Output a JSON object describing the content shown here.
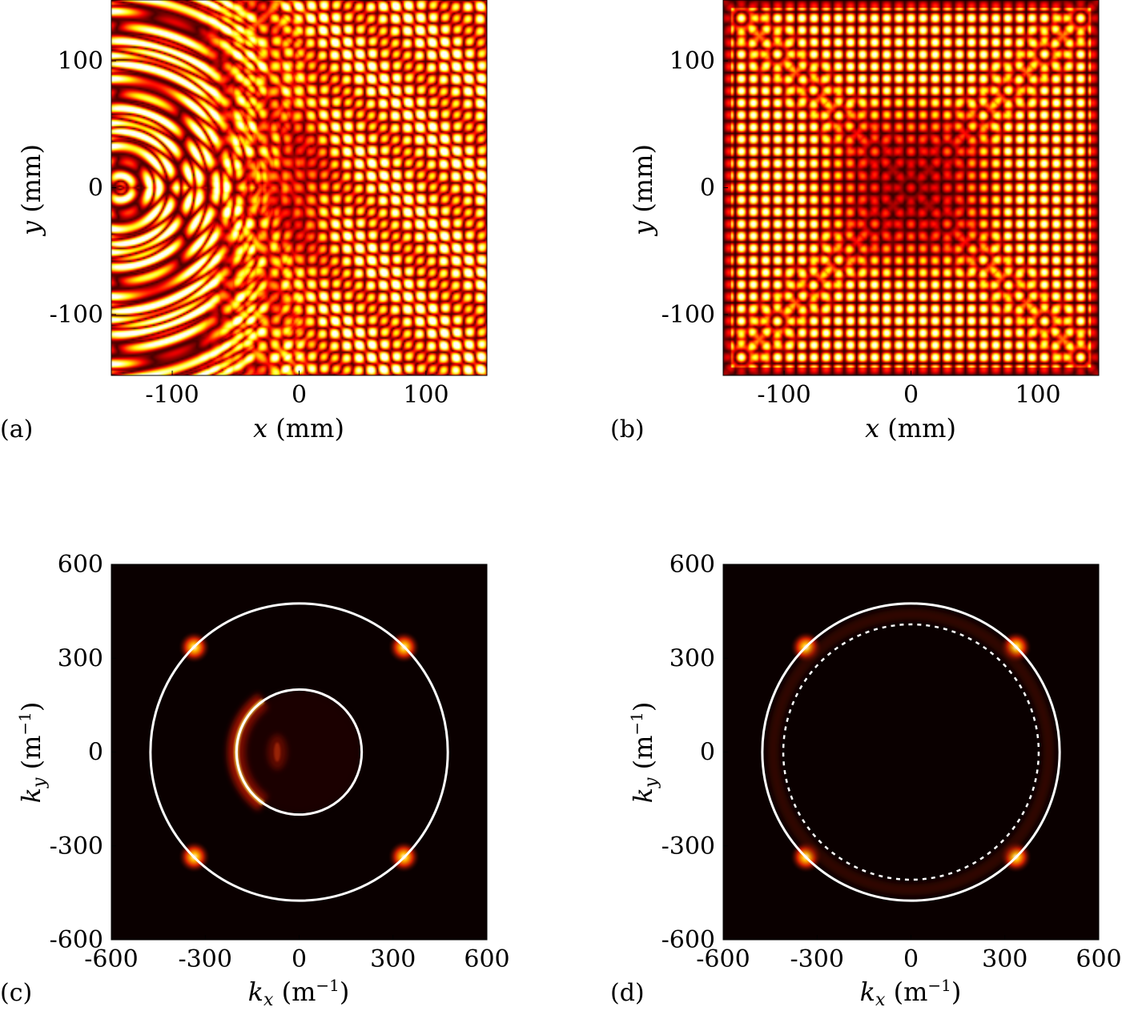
{
  "chart_data": [
    {
      "type": "heatmap",
      "panel_label": "(a)",
      "field": "real-space",
      "xlabel": "x (mm)",
      "ylabel": "y (mm)",
      "xlim": [
        -148,
        148
      ],
      "ylim": [
        -148,
        148
      ],
      "xticks": [
        -100,
        0,
        100
      ],
      "yticks": [
        -100,
        0,
        100
      ],
      "xtick_labels": [
        "-100",
        "0",
        "100"
      ],
      "ytick_labels": [
        "-100",
        "0",
        "100"
      ],
      "colormap": "hot"
    },
    {
      "type": "heatmap",
      "panel_label": "(b)",
      "field": "real-space",
      "xlabel": "x (mm)",
      "ylabel": "y (mm)",
      "xlim": [
        -148,
        148
      ],
      "ylim": [
        -148,
        148
      ],
      "xticks": [
        -100,
        0,
        100
      ],
      "yticks": [
        -100,
        0,
        100
      ],
      "xtick_labels": [
        "-100",
        "0",
        "100"
      ],
      "ytick_labels": [
        "-100",
        "0",
        "100"
      ],
      "colormap": "hot"
    },
    {
      "type": "heatmap",
      "panel_label": "(c)",
      "field": "k-space",
      "xlabel": "kx (m⁻¹)",
      "ylabel": "ky (m⁻¹)",
      "xlim": [
        -600,
        600
      ],
      "ylim": [
        -600,
        600
      ],
      "xticks": [
        -600,
        -300,
        0,
        300,
        600
      ],
      "yticks": [
        -600,
        -300,
        0,
        300,
        600
      ],
      "xtick_labels": [
        "-600",
        "-300",
        "0",
        "300",
        "600"
      ],
      "ytick_labels": [
        "-600",
        "-300",
        "0",
        "300",
        "600"
      ],
      "colormap": "hot",
      "circles": [
        {
          "cx": 0,
          "cy": 0,
          "r": 475,
          "style": "solid",
          "color": "#ffffff"
        },
        {
          "cx": 0,
          "cy": 0,
          "r": 200,
          "style": "solid",
          "color": "#ffffff"
        }
      ],
      "hotspots": [
        {
          "kx": 335,
          "ky": 335
        },
        {
          "kx": -335,
          "ky": 335
        },
        {
          "kx": 335,
          "ky": -335
        },
        {
          "kx": -335,
          "ky": -335
        }
      ]
    },
    {
      "type": "heatmap",
      "panel_label": "(d)",
      "field": "k-space",
      "xlabel": "kx (m⁻¹)",
      "ylabel": "ky (m⁻¹)",
      "xlim": [
        -600,
        600
      ],
      "ylim": [
        -600,
        600
      ],
      "xticks": [
        -600,
        -300,
        0,
        300,
        600
      ],
      "yticks": [
        -600,
        -300,
        0,
        300,
        600
      ],
      "xtick_labels": [
        "-600",
        "-300",
        "0",
        "300",
        "600"
      ],
      "ytick_labels": [
        "-600",
        "-300",
        "0",
        "300",
        "600"
      ],
      "colormap": "hot",
      "circles": [
        {
          "cx": 0,
          "cy": 0,
          "r": 475,
          "style": "solid",
          "color": "#ffffff"
        },
        {
          "cx": 0,
          "cy": 0,
          "r": 408,
          "style": "dotted",
          "color": "#ffffff"
        }
      ],
      "hotspots": [
        {
          "kx": 335,
          "ky": 335
        },
        {
          "kx": -335,
          "ky": 335
        },
        {
          "kx": 335,
          "ky": -335
        },
        {
          "kx": -335,
          "ky": -335
        }
      ]
    }
  ],
  "labels": {
    "a": {
      "tag": "(a)",
      "x_var": "x",
      "x_unit": " (mm)",
      "y_var": "y",
      "y_unit": " (mm)"
    },
    "b": {
      "tag": "(b)",
      "x_var": "x",
      "x_unit": " (mm)",
      "y_var": "y",
      "y_unit": " (mm)"
    },
    "c": {
      "tag": "(c)",
      "x_var": "k",
      "x_sub": "x",
      "x_unit": " (m",
      "x_exp": "−1",
      "x_close": ")",
      "y_var": "k",
      "y_sub": "y",
      "y_unit": " (m",
      "y_exp": "−1",
      "y_close": ")"
    },
    "d": {
      "tag": "(d)",
      "x_var": "k",
      "x_sub": "x",
      "x_unit": " (m",
      "x_exp": "−1",
      "x_close": ")",
      "y_var": "k",
      "y_sub": "y",
      "y_unit": " (m",
      "y_exp": "−1",
      "y_close": ")"
    }
  }
}
